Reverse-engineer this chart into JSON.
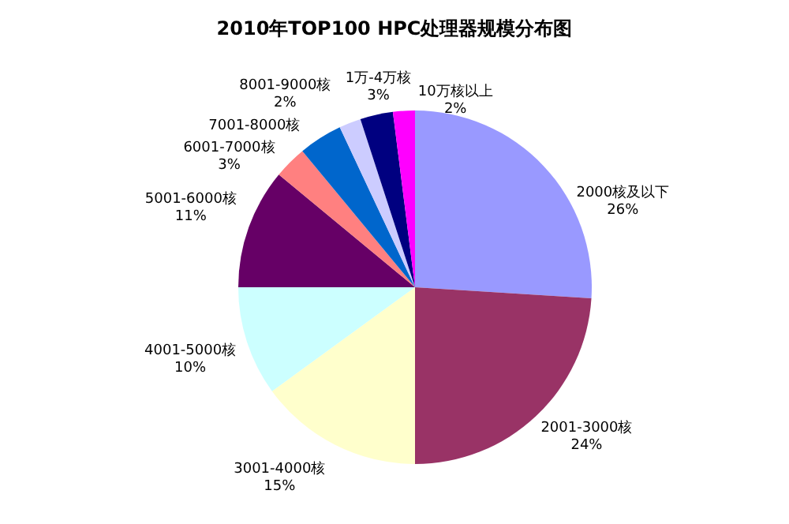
{
  "chart_data": {
    "type": "pie",
    "title": "2010年TOP100 HPC处理器规模分布图",
    "categories": [
      "2000核及以下",
      "2001-3000核",
      "3001-4000核",
      "4001-5000核",
      "5001-6000核",
      "6001-7000核",
      "7001-8000核",
      "8001-9000核",
      "1万-4万核",
      "10万核以上"
    ],
    "values": [
      26,
      24,
      15,
      10,
      11,
      3,
      4,
      2,
      3,
      2
    ],
    "value_labels": [
      "26%",
      "24%",
      "15%",
      "10%",
      "11%",
      "3%",
      null,
      "2%",
      "3%",
      "2%"
    ],
    "colors": [
      "#9999ff",
      "#993366",
      "#ffffcc",
      "#ccffff",
      "#660066",
      "#ff8080",
      "#0066cc",
      "#ccccff",
      "#000080",
      "#ff00ff"
    ]
  }
}
